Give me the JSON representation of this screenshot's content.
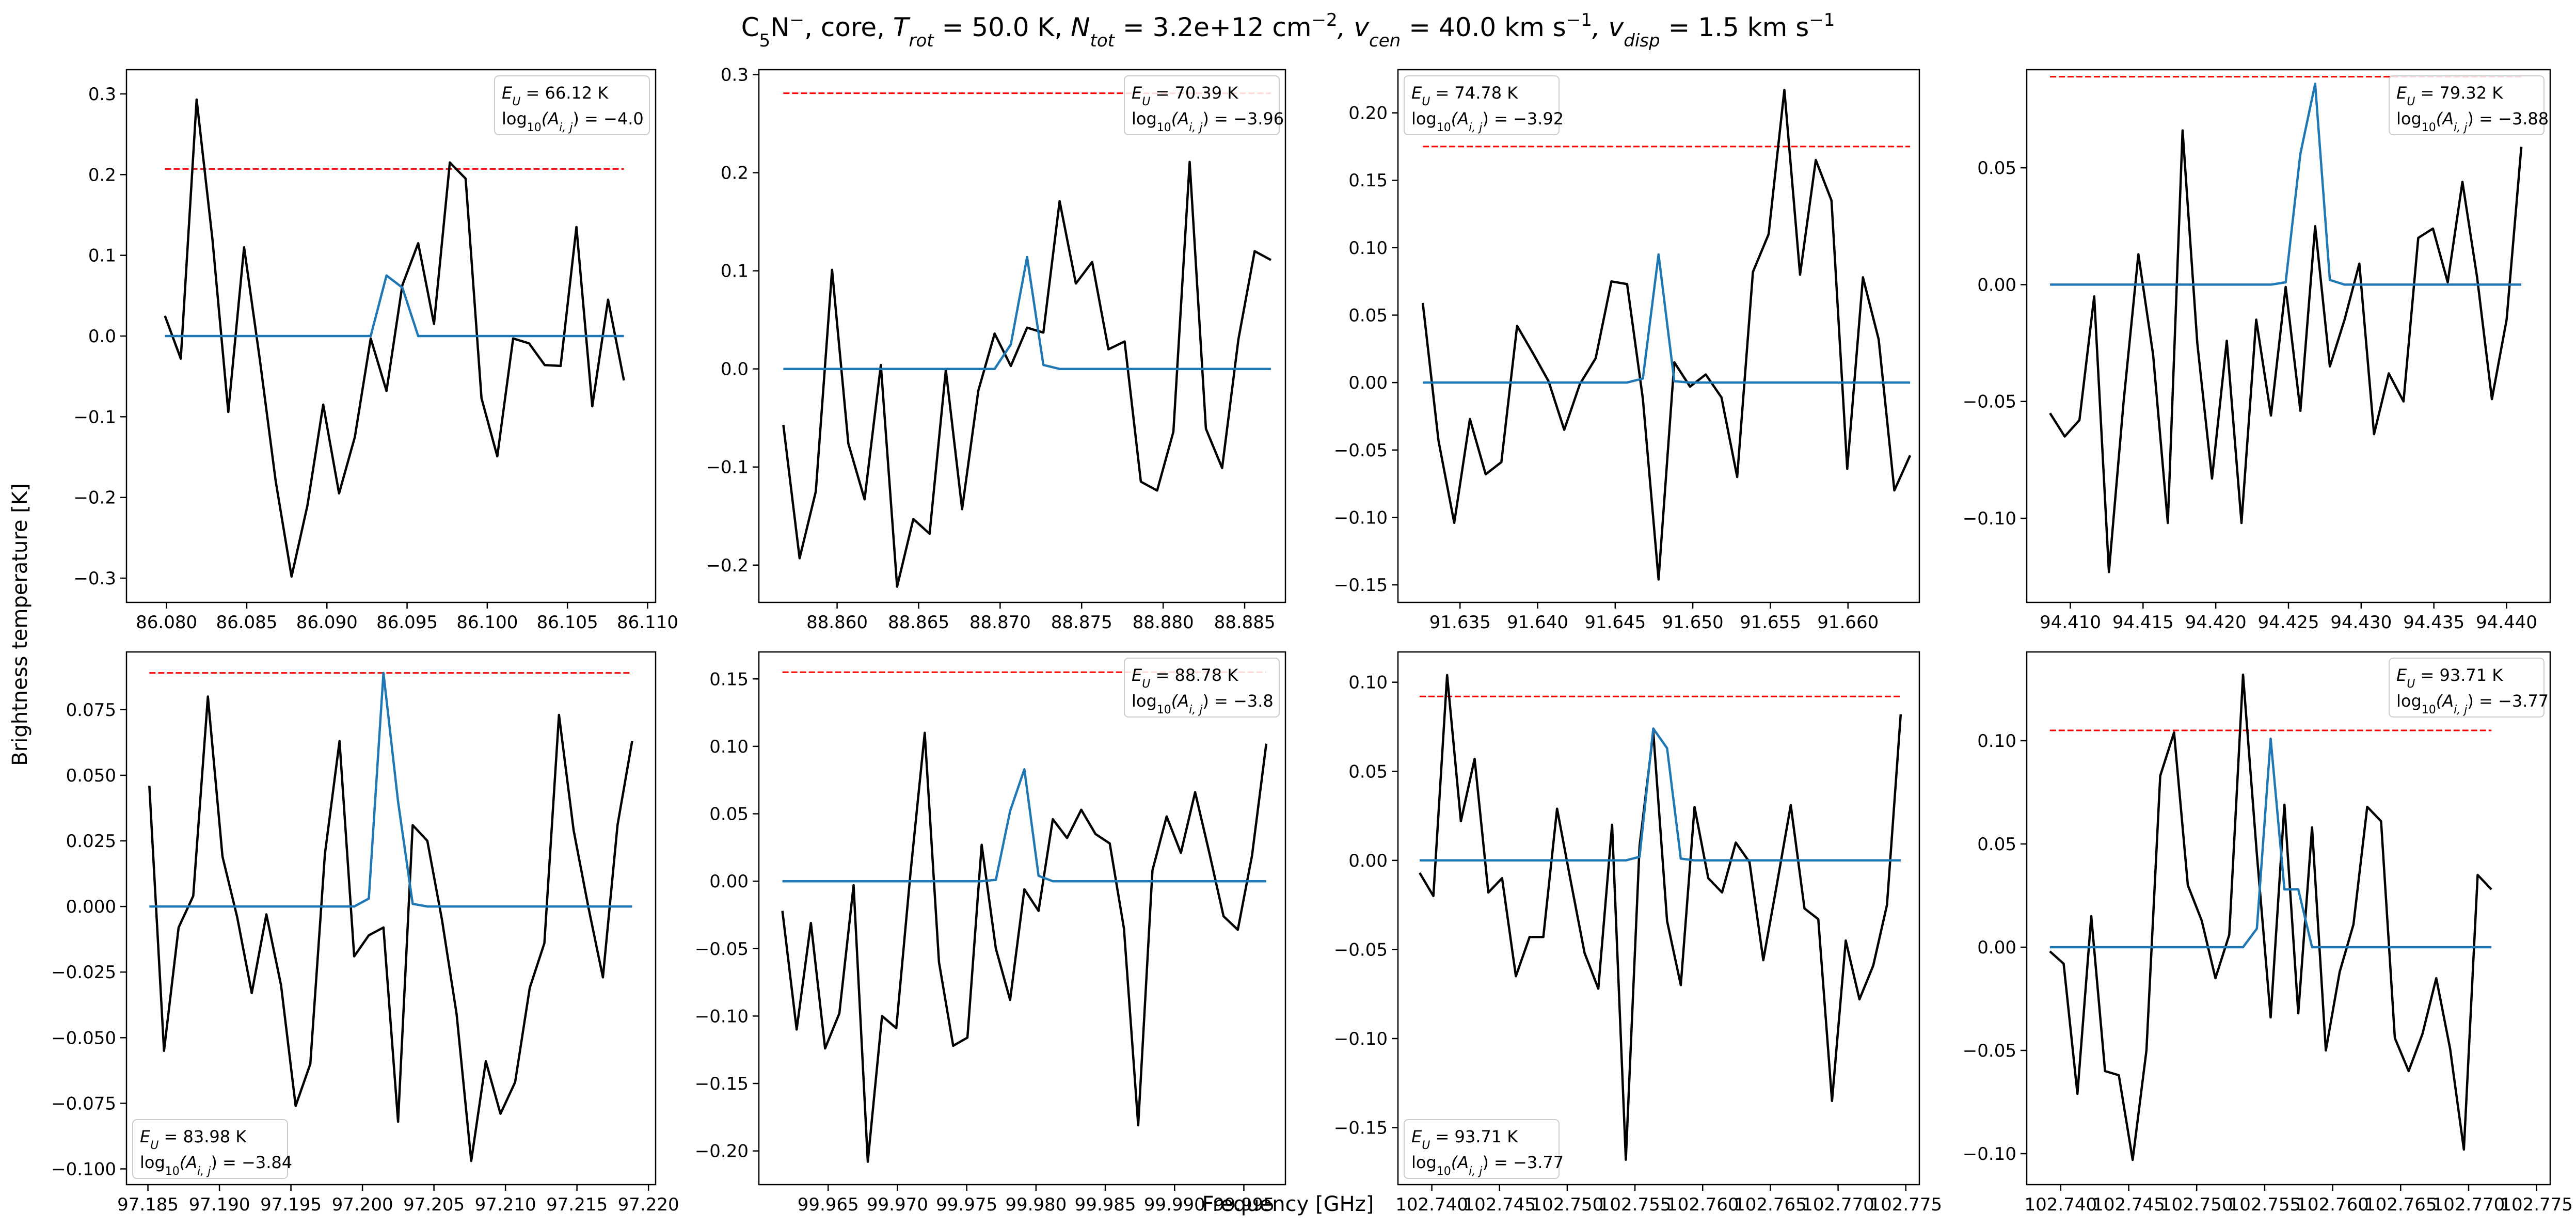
{
  "figure": {
    "title": {
      "molecule": "C",
      "molecule_sub": "5",
      "molecule_tail": "N",
      "molecule_sup": "−",
      "part_source": ", core, ",
      "trot_sym": "T",
      "trot_sub": "rot",
      "trot_val": " = 50.0 K, ",
      "ntot_sym": "N",
      "ntot_sub": "tot",
      "ntot_val": " = 3.2e+12 cm",
      "ntot_exp": "−2",
      "vcen_sym": ", v",
      "vcen_sub": "cen",
      "vcen_val": " = 40.0 km s",
      "vcen_exp": "−1",
      "vdisp_sym": ", v",
      "vdisp_sub": "disp",
      "vdisp_val": " = 1.5 km s",
      "vdisp_exp": "−1"
    },
    "xlabel": "Frequency [GHz]",
    "ylabel": "Brightness temperature [K]",
    "colors": {
      "observed": "#000000",
      "model": "#1f77b4",
      "threshold": "#ff0000"
    }
  },
  "chart_data": [
    {
      "type": "line",
      "legend_pos": "upper-right",
      "eu_label": "E",
      "eu_sub": "U",
      "eu_value": " = 66.12 K",
      "aij_label": "log",
      "aij_sub": "10",
      "aij_mid": "(A",
      "aij_sub2": "i, j",
      "aij_value": ") = −4.0",
      "xlim": [
        86.0775,
        86.1105
      ],
      "ylim": [
        -0.33,
        0.33
      ],
      "xticks": [
        86.08,
        86.085,
        86.09,
        86.095,
        86.1,
        86.105,
        86.11
      ],
      "xtick_labels": [
        "86.080",
        "86.085",
        "86.090",
        "86.095",
        "86.100",
        "86.105",
        "86.110"
      ],
      "yticks": [
        -0.3,
        -0.2,
        -0.1,
        0.0,
        0.1,
        0.2,
        0.3
      ],
      "ytick_labels": [
        "−0.3",
        "−0.2",
        "−0.1",
        "0.0",
        "0.1",
        "0.2",
        "0.3"
      ],
      "threshold": 0.207,
      "x_start": 86.0799,
      "x_step": 0.000987,
      "observed": [
        0.025,
        -0.028,
        0.293,
        0.12,
        -0.094,
        0.11,
        -0.03,
        -0.18,
        -0.298,
        -0.21,
        -0.085,
        -0.195,
        -0.125,
        -0.003,
        -0.068,
        0.063,
        0.115,
        0.015,
        0.215,
        0.195,
        -0.077,
        -0.149,
        -0.003,
        -0.009,
        -0.036,
        -0.037,
        0.135,
        -0.087,
        0.045,
        -0.055
      ],
      "model": [
        0.0,
        0.0,
        0.0,
        0.0,
        0.0,
        0.0,
        0.0,
        0.0,
        0.0,
        0.0,
        0.0,
        0.0,
        0.0,
        0.0,
        0.075,
        0.06,
        0.0,
        0.0,
        0.0,
        0.0,
        0.0,
        0.0,
        0.0,
        0.0,
        0.0,
        0.0,
        0.0,
        0.0,
        0.0,
        0.0
      ]
    },
    {
      "type": "line",
      "legend_pos": "upper-right",
      "eu_label": "E",
      "eu_sub": "U",
      "eu_value": " = 70.39 K",
      "aij_label": "log",
      "aij_sub": "10",
      "aij_mid": "(A",
      "aij_sub2": "i, j",
      "aij_value": ") = −3.96",
      "xlim": [
        88.8552,
        88.8875
      ],
      "ylim": [
        -0.238,
        0.305
      ],
      "xticks": [
        88.86,
        88.865,
        88.87,
        88.875,
        88.88,
        88.885
      ],
      "xtick_labels": [
        "88.860",
        "88.865",
        "88.870",
        "88.875",
        "88.880",
        "88.885"
      ],
      "yticks": [
        -0.2,
        -0.1,
        0.0,
        0.1,
        0.2,
        0.3
      ],
      "ytick_labels": [
        "−0.2",
        "−0.1",
        "0.0",
        "0.1",
        "0.2",
        "0.3"
      ],
      "threshold": 0.281,
      "x_start": 88.8567,
      "x_step": 0.000997,
      "observed": [
        -0.057,
        -0.193,
        -0.125,
        0.101,
        -0.076,
        -0.133,
        0.004,
        -0.222,
        -0.153,
        -0.168,
        -0.001,
        -0.143,
        -0.022,
        0.036,
        0.003,
        0.042,
        0.037,
        0.171,
        0.087,
        0.109,
        0.02,
        0.028,
        -0.115,
        -0.124,
        -0.064,
        0.211,
        -0.061,
        -0.101,
        0.03,
        0.12,
        0.111
      ],
      "model": [
        0.0,
        0.0,
        0.0,
        0.0,
        0.0,
        0.0,
        0.0,
        0.0,
        0.0,
        0.0,
        0.0,
        0.0,
        0.0,
        0.0,
        0.025,
        0.114,
        0.004,
        0.0,
        0.0,
        0.0,
        0.0,
        0.0,
        0.0,
        0.0,
        0.0,
        0.0,
        0.0,
        0.0,
        0.0,
        0.0,
        0.0
      ]
    },
    {
      "type": "line",
      "legend_pos": "upper-left",
      "eu_label": "E",
      "eu_sub": "U",
      "eu_value": " = 74.78 K",
      "aij_label": "log",
      "aij_sub": "10",
      "aij_mid": "(A",
      "aij_sub2": "i, j",
      "aij_value": ") = −3.92",
      "xlim": [
        91.631,
        91.6646
      ],
      "ylim": [
        -0.163,
        0.232
      ],
      "xticks": [
        91.63,
        91.635,
        91.64,
        91.645,
        91.65,
        91.655,
        91.66,
        91.665
      ],
      "xtick_labels": [
        "91.630",
        "91.635",
        "91.640",
        "91.645",
        "91.650",
        "91.655",
        "91.660",
        "91.665"
      ],
      "yticks": [
        -0.15,
        -0.1,
        -0.05,
        0.0,
        0.05,
        0.1,
        0.15,
        0.2
      ],
      "ytick_labels": [
        "−0.15",
        "−0.10",
        "−0.05",
        "0.00",
        "0.05",
        "0.10",
        "0.15",
        "0.20"
      ],
      "threshold": 0.175,
      "x_start": 91.6326,
      "x_step": 0.001013,
      "observed": [
        0.059,
        -0.043,
        -0.104,
        -0.027,
        -0.068,
        -0.059,
        0.042,
        0.022,
        0.001,
        -0.035,
        -0.001,
        0.018,
        0.075,
        0.073,
        -0.012,
        -0.146,
        0.015,
        -0.003,
        0.006,
        -0.011,
        -0.07,
        0.082,
        0.11,
        0.217,
        0.08,
        0.165,
        0.135,
        -0.064,
        0.078,
        0.032,
        -0.08,
        -0.054
      ],
      "model": [
        0.0,
        0.0,
        0.0,
        0.0,
        0.0,
        0.0,
        0.0,
        0.0,
        0.0,
        0.0,
        0.0,
        0.0,
        0.0,
        0.0,
        0.003,
        0.095,
        0.001,
        0.0,
        0.0,
        0.0,
        0.0,
        0.0,
        0.0,
        0.0,
        0.0,
        0.0,
        0.0,
        0.0,
        0.0,
        0.0,
        0.0,
        0.0
      ]
    },
    {
      "type": "line",
      "legend_pos": "upper-right",
      "eu_label": "E",
      "eu_sub": "U",
      "eu_value": " = 79.32 K",
      "aij_label": "log",
      "aij_sub": "10",
      "aij_mid": "(A",
      "aij_sub2": "i, j",
      "aij_value": ") = −3.88",
      "xlim": [
        94.407,
        94.443
      ],
      "ylim": [
        -0.136,
        0.092
      ],
      "xticks": [
        94.41,
        94.415,
        94.42,
        94.425,
        94.43,
        94.435,
        94.44
      ],
      "xtick_labels": [
        "94.410",
        "94.415",
        "94.420",
        "94.425",
        "94.430",
        "94.435",
        "94.440"
      ],
      "yticks": [
        -0.1,
        -0.05,
        0.0,
        0.05
      ],
      "ytick_labels": [
        "−0.10",
        "−0.05",
        "0.00",
        "0.05"
      ],
      "threshold": 0.089,
      "x_start": 94.4086,
      "x_step": 0.001013,
      "observed": [
        -0.055,
        -0.065,
        -0.058,
        -0.005,
        -0.123,
        -0.05,
        0.013,
        -0.03,
        -0.102,
        0.066,
        -0.025,
        -0.083,
        -0.024,
        -0.102,
        -0.015,
        -0.056,
        -0.001,
        -0.054,
        0.025,
        -0.035,
        -0.015,
        0.009,
        -0.064,
        -0.038,
        -0.05,
        0.02,
        0.024,
        0.001,
        0.044,
        0.003,
        -0.049,
        -0.015,
        0.059
      ],
      "model": [
        0.0,
        0.0,
        0.0,
        0.0,
        0.0,
        0.0,
        0.0,
        0.0,
        0.0,
        0.0,
        0.0,
        0.0,
        0.0,
        0.0,
        0.0,
        0.0,
        0.001,
        0.056,
        0.086,
        0.002,
        0.0,
        0.0,
        0.0,
        0.0,
        0.0,
        0.0,
        0.0,
        0.0,
        0.0,
        0.0,
        0.0,
        0.0,
        0.0
      ]
    },
    {
      "type": "line",
      "legend_pos": "lower-left",
      "eu_label": "E",
      "eu_sub": "U",
      "eu_value": " = 83.98 K",
      "aij_label": "log",
      "aij_sub": "10",
      "aij_mid": "(A",
      "aij_sub2": "i, j",
      "aij_value": ") = −3.84",
      "xlim": [
        97.1835,
        97.2205
      ],
      "ylim": [
        -0.106,
        0.097
      ],
      "xticks": [
        97.185,
        97.19,
        97.195,
        97.2,
        97.205,
        97.21,
        97.215,
        97.22
      ],
      "xtick_labels": [
        "97.185",
        "97.190",
        "97.195",
        "97.200",
        "97.205",
        "97.210",
        "97.215",
        "97.220"
      ],
      "yticks": [
        -0.1,
        -0.075,
        -0.05,
        -0.025,
        0.0,
        0.025,
        0.05,
        0.075
      ],
      "ytick_labels": [
        "−0.100",
        "−0.075",
        "−0.050",
        "−0.025",
        "0.000",
        "0.025",
        "0.050",
        "0.075"
      ],
      "threshold": 0.089,
      "x_start": 97.1851,
      "x_step": 0.001023,
      "observed": [
        0.046,
        -0.055,
        -0.008,
        0.004,
        0.08,
        0.019,
        -0.004,
        -0.033,
        -0.003,
        -0.03,
        -0.076,
        -0.06,
        0.02,
        0.063,
        -0.019,
        -0.011,
        -0.008,
        -0.082,
        0.031,
        0.025,
        -0.005,
        -0.041,
        -0.097,
        -0.059,
        -0.079,
        -0.067,
        -0.031,
        -0.014,
        0.073,
        0.029,
        0.0,
        -0.027,
        0.031,
        0.063
      ],
      "model": [
        0.0,
        0.0,
        0.0,
        0.0,
        0.0,
        0.0,
        0.0,
        0.0,
        0.0,
        0.0,
        0.0,
        0.0,
        0.0,
        0.0,
        0.0,
        0.003,
        0.089,
        0.04,
        0.001,
        0.0,
        0.0,
        0.0,
        0.0,
        0.0,
        0.0,
        0.0,
        0.0,
        0.0,
        0.0,
        0.0,
        0.0,
        0.0,
        0.0,
        0.0
      ]
    },
    {
      "type": "line",
      "legend_pos": "upper-right",
      "eu_label": "E",
      "eu_sub": "U",
      "eu_value": " = 88.78 K",
      "aij_label": "log",
      "aij_sub": "10",
      "aij_mid": "(A",
      "aij_sub2": "i, j",
      "aij_value": ") = −3.8",
      "xlim": [
        99.96,
        99.998
      ],
      "ylim": [
        -0.225,
        0.17
      ],
      "xticks": [
        99.965,
        99.97,
        99.975,
        99.98,
        99.985,
        99.99,
        99.995
      ],
      "xtick_labels": [
        "99.965",
        "99.970",
        "99.975",
        "99.980",
        "99.985",
        "99.990",
        "99.995"
      ],
      "yticks": [
        -0.2,
        -0.15,
        -0.1,
        -0.05,
        0.0,
        0.05,
        0.1,
        0.15
      ],
      "ytick_labels": [
        "−0.20",
        "−0.15",
        "−0.10",
        "−0.05",
        "0.00",
        "0.05",
        "0.10",
        "0.15"
      ],
      "threshold": 0.155,
      "x_start": 99.9617,
      "x_step": 0.001027,
      "observed": [
        -0.022,
        -0.11,
        -0.031,
        -0.124,
        -0.098,
        -0.003,
        -0.208,
        -0.1,
        -0.109,
        0.006,
        0.11,
        -0.06,
        -0.122,
        -0.116,
        0.027,
        -0.05,
        -0.088,
        -0.006,
        -0.022,
        0.046,
        0.032,
        0.053,
        0.035,
        0.028,
        -0.035,
        -0.181,
        0.008,
        0.048,
        0.021,
        0.066,
        0.021,
        -0.026,
        -0.036,
        0.019,
        0.102
      ],
      "model": [
        0.0,
        0.0,
        0.0,
        0.0,
        0.0,
        0.0,
        0.0,
        0.0,
        0.0,
        0.0,
        0.0,
        0.0,
        0.0,
        0.0,
        0.0,
        0.001,
        0.052,
        0.083,
        0.004,
        0.0,
        0.0,
        0.0,
        0.0,
        0.0,
        0.0,
        0.0,
        0.0,
        0.0,
        0.0,
        0.0,
        0.0,
        0.0,
        0.0,
        0.0,
        0.0
      ]
    },
    {
      "type": "line",
      "legend_pos": "lower-left",
      "eu_label": "E",
      "eu_sub": "U",
      "eu_value": " = 93.71 K",
      "aij_label": "log",
      "aij_sub": "10",
      "aij_mid": "(A",
      "aij_sub2": "i, j",
      "aij_value": ") = −3.77",
      "xlim": [
        102.7375,
        102.776
      ],
      "ylim": [
        -0.182,
        0.117
      ],
      "xticks": [
        102.74,
        102.745,
        102.75,
        102.755,
        102.76,
        102.765,
        102.77,
        102.775
      ],
      "xtick_labels": [
        "102.740",
        "102.745",
        "102.750",
        "102.755",
        "102.760",
        "102.765",
        "102.770",
        "102.775"
      ],
      "yticks": [
        -0.15,
        -0.1,
        -0.05,
        0.0,
        0.05,
        0.1
      ],
      "ytick_labels": [
        "−0.15",
        "−0.10",
        "−0.05",
        "0.00",
        "0.05",
        "0.10"
      ],
      "threshold": 0.092,
      "x_start": 102.7391,
      "x_step": 0.001015,
      "observed": [
        -0.007,
        -0.02,
        0.104,
        0.022,
        0.057,
        -0.018,
        -0.01,
        -0.065,
        -0.043,
        -0.043,
        0.029,
        -0.012,
        -0.052,
        -0.072,
        0.02,
        -0.168,
        0.008,
        0.072,
        -0.034,
        -0.07,
        0.03,
        -0.01,
        -0.018,
        0.01,
        -0.001,
        -0.056,
        -0.013,
        0.031,
        -0.027,
        -0.033,
        -0.135,
        -0.045,
        -0.078,
        -0.059,
        -0.025,
        0.082
      ],
      "model": [
        0.0,
        0.0,
        0.0,
        0.0,
        0.0,
        0.0,
        0.0,
        0.0,
        0.0,
        0.0,
        0.0,
        0.0,
        0.0,
        0.0,
        0.0,
        0.0,
        0.002,
        0.074,
        0.063,
        0.001,
        0.0,
        0.0,
        0.0,
        0.0,
        0.0,
        0.0,
        0.0,
        0.0,
        0.0,
        0.0,
        0.0,
        0.0,
        0.0,
        0.0,
        0.0,
        0.0
      ]
    },
    {
      "type": "line",
      "legend_pos": "upper-right",
      "eu_label": "E",
      "eu_sub": "U",
      "eu_value": " = 93.71 K",
      "aij_label": "log",
      "aij_sub": "10",
      "aij_mid": "(A",
      "aij_sub2": "i, j",
      "aij_value": ") = −3.77",
      "xlim": [
        102.7375,
        102.776
      ],
      "ylim": [
        -0.115,
        0.143
      ],
      "xticks": [
        102.74,
        102.745,
        102.75,
        102.755,
        102.76,
        102.765,
        102.77,
        102.775
      ],
      "xtick_labels": [
        "102.740",
        "102.745",
        "102.750",
        "102.755",
        "102.760",
        "102.765",
        "102.770",
        "102.775"
      ],
      "yticks": [
        -0.1,
        -0.05,
        0.0,
        0.05,
        0.1
      ],
      "ytick_labels": [
        "−0.10",
        "−0.05",
        "0.00",
        "0.05",
        "0.10"
      ],
      "threshold": 0.105,
      "x_start": 102.7392,
      "x_step": 0.001015,
      "observed": [
        -0.002,
        -0.008,
        -0.071,
        0.015,
        -0.06,
        -0.062,
        -0.103,
        -0.05,
        0.083,
        0.104,
        0.03,
        0.013,
        -0.015,
        0.006,
        0.132,
        0.045,
        -0.034,
        0.069,
        -0.032,
        0.058,
        -0.05,
        -0.012,
        0.011,
        0.068,
        0.061,
        -0.044,
        -0.06,
        -0.042,
        -0.015,
        -0.049,
        -0.098,
        0.035,
        0.028
      ],
      "model": [
        0.0,
        0.0,
        0.0,
        0.0,
        0.0,
        0.0,
        0.0,
        0.0,
        0.0,
        0.0,
        0.0,
        0.0,
        0.0,
        0.0,
        0.0,
        0.009,
        0.101,
        0.028,
        0.028,
        0.0,
        0.0,
        0.0,
        0.0,
        0.0,
        0.0,
        0.0,
        0.0,
        0.0,
        0.0,
        0.0,
        0.0,
        0.0,
        0.0
      ]
    }
  ]
}
